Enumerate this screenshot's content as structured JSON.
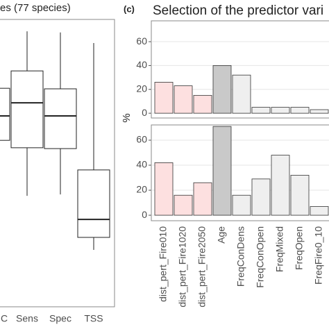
{
  "chart_data": [
    {
      "type": "box",
      "title": "es (77 species)",
      "categories": [
        "C",
        "Sens",
        "Spec",
        "TSS"
      ],
      "boxes": [
        {
          "low": null,
          "q1": 0.58,
          "median": 0.666,
          "q3": 0.763,
          "high": null
        },
        {
          "low": 0.385,
          "q1": 0.554,
          "median": 0.712,
          "q3": 0.824,
          "high": 0.963
        },
        {
          "low": 0.39,
          "q1": 0.551,
          "median": 0.666,
          "q3": 0.761,
          "high": 0.959
        },
        {
          "low": 0.195,
          "q1": 0.239,
          "median": 0.302,
          "q3": 0.476,
          "high": 0.922
        }
      ],
      "ylim": [
        0,
        1
      ]
    },
    {
      "type": "bar",
      "label": "(c)",
      "title": "Selection of the predictor vari",
      "ylabel": "%",
      "categories": [
        "dist_pert_Fire010",
        "dist_pert_Fire1020",
        "dist_pert_Fire2050",
        "Age",
        "FreqConDens",
        "FreqConOpen",
        "FreqMixed",
        "FreqOpen",
        "FreqFire0_10"
      ],
      "colors": [
        "#fde0e0",
        "#fde0e0",
        "#fde0e0",
        "#c9c9c9",
        "#efefef",
        "#efefef",
        "#efefef",
        "#efefef",
        "#efefef"
      ],
      "grid": true,
      "panels": [
        {
          "values": [
            26,
            23,
            15,
            40,
            32,
            5,
            5,
            5,
            3
          ],
          "ylim": [
            -4,
            77.5
          ],
          "yticks": [
            0,
            20,
            40,
            60
          ]
        },
        {
          "values": [
            42,
            16,
            26,
            71,
            16,
            29,
            48,
            32,
            7
          ],
          "ylim": [
            -4.4,
            72.2
          ],
          "yticks": [
            0,
            20,
            40,
            60
          ]
        }
      ]
    }
  ]
}
